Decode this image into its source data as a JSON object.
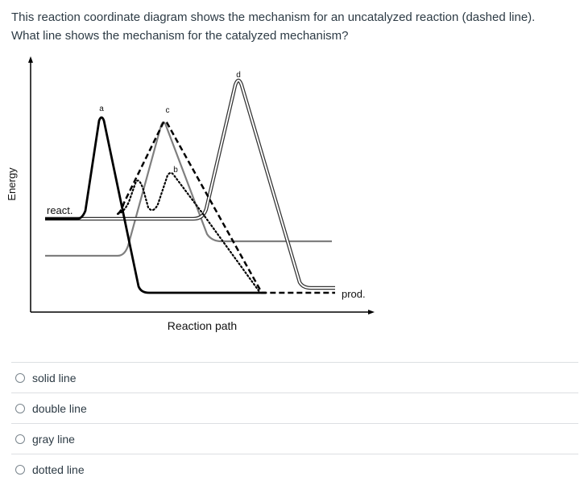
{
  "question": {
    "line1": "This reaction coordinate diagram shows the mechanism for an uncatalyzed reaction (dashed line).",
    "line2": "What line shows the mechanism for the catalyzed mechanism?"
  },
  "diagram": {
    "y_axis_label": "Energy",
    "x_axis_label": "Reaction path",
    "reactant_label": "react.",
    "product_label": "prod.",
    "peak_labels": [
      "a",
      "b",
      "c",
      "d"
    ],
    "line_styles": {
      "solid": "#000000",
      "double": "#333333",
      "gray": "#7f7f7f",
      "dotted": "#000000",
      "dashed": "#000000"
    }
  },
  "options": [
    {
      "label": "solid line"
    },
    {
      "label": "double line"
    },
    {
      "label": "gray line"
    },
    {
      "label": "dotted line"
    }
  ]
}
